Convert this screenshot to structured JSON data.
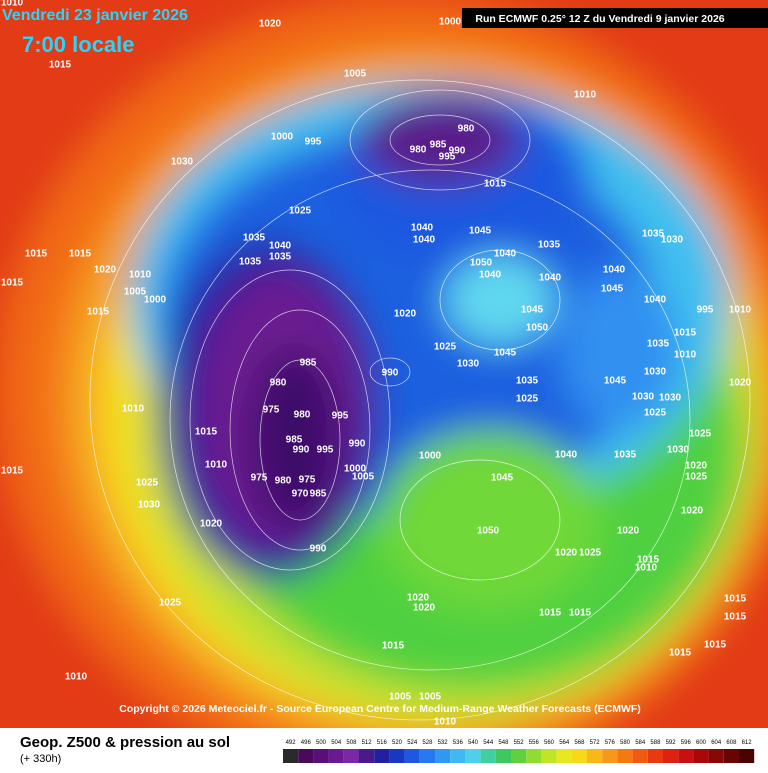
{
  "header": {
    "date": "Vendredi 23 janvier 2026",
    "time": "7:00 locale",
    "run": "Run ECMWF 0.25° 12 Z du Vendredi 9 janvier 2026"
  },
  "copyright": "Copyright © 2026 Meteociel.fr - Source European Centre for Medium-Range Weather Forecasts (ECMWF)",
  "footer": {
    "title": "Geop. Z500 & pression au sol",
    "lead": "(+ 330h)"
  },
  "legend": {
    "values": [
      492,
      496,
      500,
      504,
      508,
      512,
      516,
      520,
      524,
      528,
      532,
      536,
      540,
      544,
      548,
      552,
      556,
      560,
      564,
      568,
      572,
      576,
      580,
      584,
      588,
      592,
      596,
      600,
      604,
      608,
      612
    ],
    "colors": [
      "#2a2a2a",
      "#4a0a5a",
      "#5a0f78",
      "#6a1a90",
      "#7a28a8",
      "#4a1a8a",
      "#2020a0",
      "#1838c0",
      "#1e58e0",
      "#2878f0",
      "#3098f0",
      "#40b8f0",
      "#50d0e8",
      "#40d0a0",
      "#40c860",
      "#60d040",
      "#90dc30",
      "#c0e428",
      "#e8e820",
      "#f8d818",
      "#f8b818",
      "#f89818",
      "#f47a10",
      "#f05a10",
      "#e83a10",
      "#e02010",
      "#c81010",
      "#a80808",
      "#880808",
      "#680404",
      "#4a0202"
    ]
  },
  "isobar_labels": [
    1010,
    1020,
    1000,
    1015,
    1005,
    1010,
    980,
    1000,
    995,
    980,
    985,
    990,
    995,
    1030,
    1015,
    1025,
    1040,
    1040,
    1045,
    1035,
    1035,
    1040,
    1035,
    1035,
    1015,
    1015,
    1020,
    1010,
    1005,
    1000,
    1015,
    1015,
    1050,
    1040,
    1040,
    1040,
    1045,
    1040,
    1045,
    1020,
    1025,
    1030,
    1045,
    1035,
    1025,
    1050,
    990,
    985,
    980,
    975,
    980,
    995,
    985,
    990,
    995,
    990,
    1000,
    1005,
    1015,
    1010,
    975,
    980,
    975,
    970,
    985,
    990,
    1020,
    1025,
    1030,
    1010,
    1015,
    1040,
    1035,
    1045,
    1000,
    1050,
    1020,
    1025,
    1020,
    1015,
    1010,
    1020,
    1020,
    1015,
    1015,
    1015,
    1025,
    1010,
    1005,
    1005,
    1010,
    1010,
    1020,
    1025,
    1030,
    1020,
    1025,
    1020,
    1015,
    1015,
    1015,
    1015,
    1035,
    1030,
    995,
    1010,
    1015,
    1040,
    1035,
    1030,
    1045,
    1030,
    1025,
    1030
  ]
}
